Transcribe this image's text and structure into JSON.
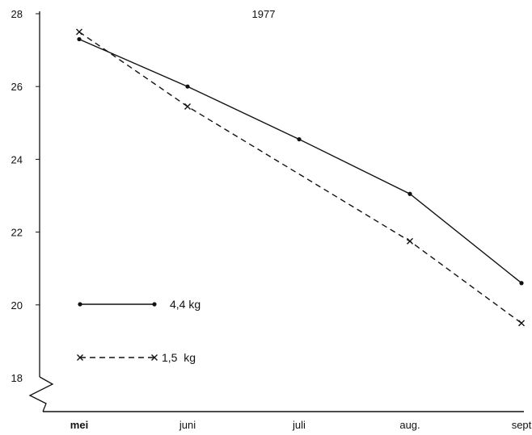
{
  "chart_data": {
    "type": "line",
    "title": "1977",
    "xlabel": "",
    "ylabel": "",
    "categories": [
      "mei",
      "juni",
      "juli",
      "aug.",
      "sept"
    ],
    "yticks": [
      "28",
      "26",
      "24",
      "22",
      "20",
      "18"
    ],
    "ylim": [
      18,
      28
    ],
    "axis_break": true,
    "grid": false,
    "legend_position": "bottom-left",
    "series": [
      {
        "name": "4,4 kg",
        "values": [
          27.3,
          26.0,
          24.55,
          23.05,
          20.6
        ],
        "line_style": "solid",
        "marker": "dot"
      },
      {
        "name": "1,5  kg",
        "values": [
          27.5,
          25.45,
          null,
          21.75,
          19.5
        ],
        "line_style": "dashed",
        "marker": "x"
      }
    ]
  }
}
